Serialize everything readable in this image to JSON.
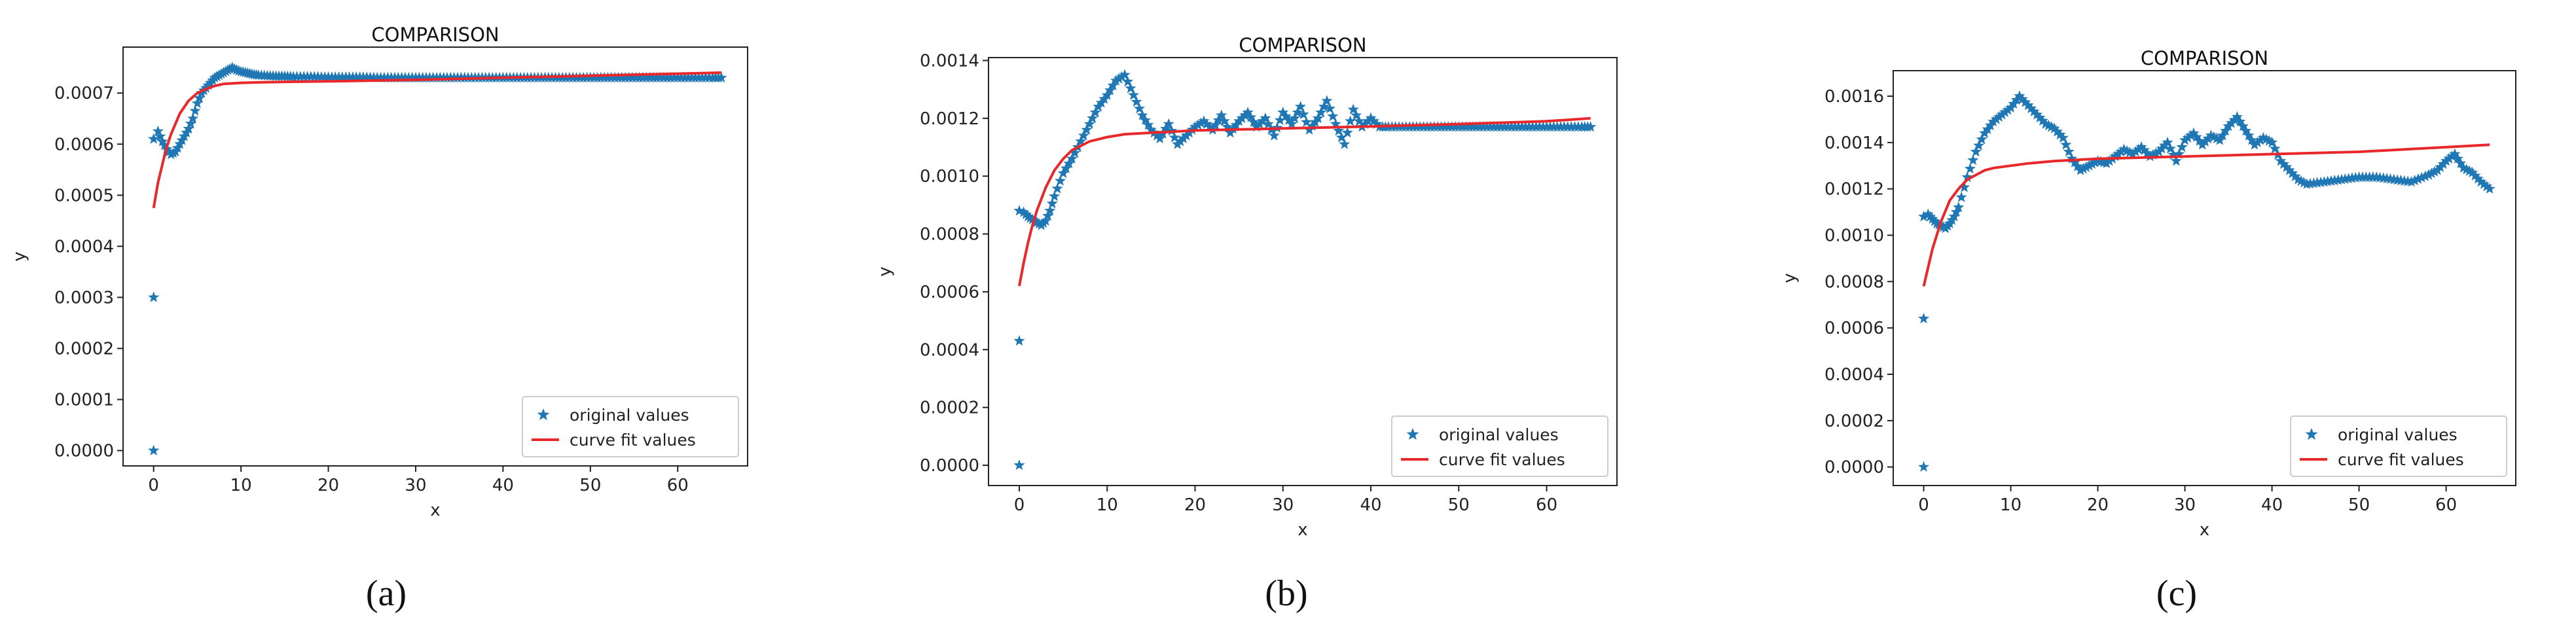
{
  "panels": [
    {
      "caption": "(a)",
      "chart_data": {
        "type": "scatter",
        "title": "COMPARISON",
        "xlabel": "x",
        "ylabel": "y",
        "xlim": [
          -3.5,
          68
        ],
        "ylim": [
          -3e-05,
          0.00079
        ],
        "xticks": [
          0,
          10,
          20,
          30,
          40,
          50,
          60
        ],
        "xtick_labels": [
          "0",
          "10",
          "20",
          "30",
          "40",
          "50",
          "60"
        ],
        "yticks": [
          0,
          0.0001,
          0.0002,
          0.0003,
          0.0004,
          0.0005,
          0.0006,
          0.0007
        ],
        "ytick_labels": [
          "0.0000",
          "0.0001",
          "0.0002",
          "0.0003",
          "0.0004",
          "0.0005",
          "0.0006",
          "0.0007"
        ],
        "legend": "bottom-right",
        "grid": false,
        "series": [
          {
            "name": "original values",
            "kind": "scatter",
            "marker": "star",
            "color": "#1f77b4",
            "x": [
              0,
              0,
              0,
              0.5,
              1,
              1.5,
              2,
              2.5,
              3,
              3.5,
              4,
              4.5,
              5,
              5.5,
              6,
              6.5,
              7,
              7.5,
              8,
              8.5,
              9,
              9.5,
              10,
              10.5,
              11,
              11.5,
              12,
              13,
              14,
              15,
              16,
              18,
              20,
              22,
              24,
              26,
              28,
              30,
              32,
              34,
              36,
              38,
              40,
              42,
              44,
              46,
              48,
              50,
              52,
              54,
              56,
              58,
              60,
              62,
              64,
              65
            ],
            "y": [
              0,
              0.0003,
              0.00061,
              0.000625,
              0.000605,
              0.00059,
              0.00058,
              0.000585,
              0.0006,
              0.000615,
              0.00063,
              0.00065,
              0.00068,
              0.0007,
              0.00071,
              0.00072,
              0.00073,
              0.000735,
              0.00074,
              0.000745,
              0.00075,
              0.000745,
              0.000742,
              0.00074,
              0.000738,
              0.000736,
              0.000735,
              0.000734,
              0.000733,
              0.000733,
              0.000732,
              0.000732,
              0.000731,
              0.000731,
              0.000731,
              0.00073,
              0.00073,
              0.00073,
              0.00073,
              0.00073,
              0.00073,
              0.00073,
              0.00073,
              0.00073,
              0.00073,
              0.00073,
              0.00073,
              0.00073,
              0.00073,
              0.00073,
              0.00073,
              0.00073,
              0.00073,
              0.00073,
              0.00073,
              0.00073
            ]
          },
          {
            "name": "curve fit values",
            "kind": "line",
            "color": "#e8282b",
            "x": [
              0,
              0.5,
              1,
              1.5,
              2,
              3,
              4,
              5,
              6,
              7,
              8,
              10,
              12,
              15,
              20,
              30,
              40,
              50,
              60,
              65
            ],
            "y": [
              0.000475,
              0.000525,
              0.00056,
              0.000595,
              0.00062,
              0.00066,
              0.000685,
              0.0007,
              0.000708,
              0.000714,
              0.000718,
              0.00072,
              0.000721,
              0.000722,
              0.000723,
              0.000726,
              0.00073,
              0.000734,
              0.000738,
              0.00074
            ]
          }
        ]
      }
    },
    {
      "caption": "(b)",
      "chart_data": {
        "type": "scatter",
        "title": "COMPARISON",
        "xlabel": "x",
        "ylabel": "y",
        "xlim": [
          -3.5,
          68
        ],
        "ylim": [
          -7e-05,
          0.00141
        ],
        "xticks": [
          0,
          10,
          20,
          30,
          40,
          50,
          60
        ],
        "xtick_labels": [
          "0",
          "10",
          "20",
          "30",
          "40",
          "50",
          "60"
        ],
        "yticks": [
          0,
          0.0002,
          0.0004,
          0.0006,
          0.0008,
          0.001,
          0.0012,
          0.0014
        ],
        "ytick_labels": [
          "0.0000",
          "0.0002",
          "0.0004",
          "0.0006",
          "0.0008",
          "0.0010",
          "0.0012",
          "0.0014"
        ],
        "legend": "bottom-right",
        "grid": false,
        "series": [
          {
            "name": "original values",
            "kind": "scatter",
            "marker": "star",
            "color": "#1f77b4",
            "x": [
              0,
              0,
              0,
              0.5,
              1,
              1.5,
              2,
              2.5,
              3,
              3.5,
              4,
              5,
              6,
              7,
              8,
              9,
              10,
              11,
              12,
              13,
              14,
              15,
              16,
              17,
              18,
              19,
              20,
              21,
              22,
              23,
              24,
              25,
              26,
              27,
              28,
              29,
              30,
              31,
              32,
              33,
              34,
              35,
              36,
              37,
              38,
              39,
              40,
              41,
              42,
              44,
              46,
              48,
              50,
              52,
              54,
              56,
              58,
              60,
              62,
              64,
              65
            ],
            "y": [
              0,
              0.00043,
              0.00088,
              0.000875,
              0.00086,
              0.00085,
              0.00084,
              0.00083,
              0.000845,
              0.00088,
              0.00093,
              0.00101,
              0.00106,
              0.00112,
              0.00118,
              0.00124,
              0.00128,
              0.00133,
              0.00135,
              0.00128,
              0.00121,
              0.00116,
              0.00113,
              0.00118,
              0.00111,
              0.00114,
              0.00117,
              0.00119,
              0.00116,
              0.00121,
              0.00115,
              0.00119,
              0.00122,
              0.00117,
              0.0012,
              0.00114,
              0.00122,
              0.00118,
              0.00124,
              0.00116,
              0.0012,
              0.00126,
              0.00118,
              0.00111,
              0.00123,
              0.00117,
              0.0012,
              0.00117,
              0.00117,
              0.00117,
              0.00117,
              0.00117,
              0.00117,
              0.00117,
              0.00117,
              0.00117,
              0.00117,
              0.00117,
              0.00117,
              0.00117,
              0.00117
            ]
          },
          {
            "name": "curve fit values",
            "kind": "line",
            "color": "#e8282b",
            "x": [
              0,
              0.5,
              1,
              1.5,
              2,
              3,
              4,
              5,
              6,
              7,
              8,
              10,
              12,
              15,
              20,
              30,
              40,
              50,
              60,
              65
            ],
            "y": [
              0.00062,
              0.0007,
              0.00077,
              0.00083,
              0.00088,
              0.00096,
              0.00102,
              0.00106,
              0.00109,
              0.001105,
              0.00112,
              0.001135,
              0.001145,
              0.00115,
              0.001158,
              0.001165,
              0.001172,
              0.00118,
              0.00119,
              0.0012
            ]
          }
        ]
      }
    },
    {
      "caption": "(c)",
      "chart_data": {
        "type": "scatter",
        "title": "COMPARISON",
        "xlabel": "x",
        "ylabel": "y",
        "xlim": [
          -3.5,
          68
        ],
        "ylim": [
          -8e-05,
          0.00171
        ],
        "xticks": [
          0,
          10,
          20,
          30,
          40,
          50,
          60
        ],
        "xtick_labels": [
          "0",
          "10",
          "20",
          "30",
          "40",
          "50",
          "60"
        ],
        "yticks": [
          0,
          0.0002,
          0.0004,
          0.0006,
          0.0008,
          0.001,
          0.0012,
          0.0014,
          0.0016
        ],
        "ytick_labels": [
          "0.0000",
          "0.0002",
          "0.0004",
          "0.0006",
          "0.0008",
          "0.0010",
          "0.0012",
          "0.0014",
          "0.0016"
        ],
        "legend": "bottom-right",
        "grid": false,
        "series": [
          {
            "name": "original values",
            "kind": "scatter",
            "marker": "star",
            "color": "#1f77b4",
            "x": [
              0,
              0,
              0,
              0.5,
              1,
              1.5,
              2,
              2.5,
              3,
              3.5,
              4,
              5,
              6,
              7,
              8,
              9,
              10,
              11,
              12,
              13,
              14,
              15,
              16,
              17,
              18,
              19,
              20,
              21,
              22,
              23,
              24,
              25,
              26,
              27,
              28,
              29,
              30,
              31,
              32,
              33,
              34,
              35,
              36,
              37,
              38,
              39,
              40,
              41,
              42,
              43,
              44,
              46,
              48,
              50,
              52,
              54,
              56,
              58,
              59,
              60,
              61,
              62,
              63,
              64,
              65
            ],
            "y": [
              0,
              0.00064,
              0.00108,
              0.00109,
              0.00107,
              0.00105,
              0.00104,
              0.00103,
              0.00105,
              0.00108,
              0.00112,
              0.00125,
              0.00136,
              0.00144,
              0.00149,
              0.00152,
              0.00155,
              0.0016,
              0.00156,
              0.00152,
              0.00148,
              0.00146,
              0.00142,
              0.00133,
              0.00128,
              0.0013,
              0.00132,
              0.00131,
              0.00134,
              0.00137,
              0.00135,
              0.00138,
              0.00134,
              0.00136,
              0.0014,
              0.00132,
              0.00141,
              0.00144,
              0.00139,
              0.00143,
              0.00141,
              0.00147,
              0.00151,
              0.00145,
              0.00139,
              0.00142,
              0.0014,
              0.00132,
              0.00128,
              0.00124,
              0.00122,
              0.00123,
              0.00124,
              0.00125,
              0.00125,
              0.00124,
              0.00123,
              0.00126,
              0.00128,
              0.00132,
              0.00135,
              0.00129,
              0.00127,
              0.00123,
              0.0012
            ]
          },
          {
            "name": "curve fit values",
            "kind": "line",
            "color": "#e8282b",
            "x": [
              0,
              0.5,
              1,
              1.5,
              2,
              3,
              4,
              5,
              6,
              7,
              8,
              10,
              12,
              15,
              20,
              30,
              40,
              50,
              60,
              65
            ],
            "y": [
              0.00078,
              0.00086,
              0.00094,
              0.001,
              0.00106,
              0.00115,
              0.0012,
              0.00124,
              0.00126,
              0.00128,
              0.00129,
              0.0013,
              0.00131,
              0.00132,
              0.00133,
              0.00134,
              0.00135,
              0.00136,
              0.00138,
              0.00139
            ]
          }
        ]
      }
    }
  ]
}
